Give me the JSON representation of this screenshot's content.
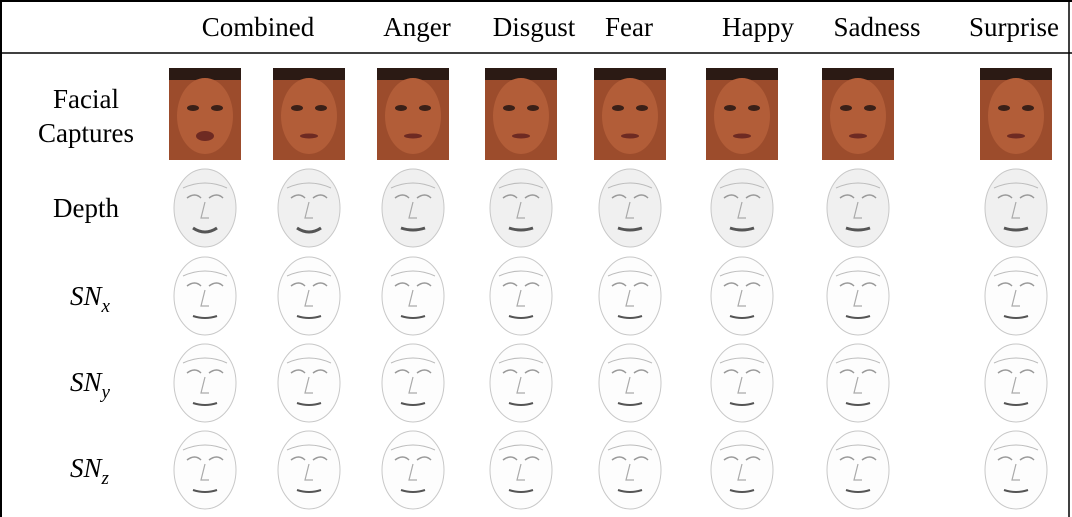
{
  "header": {
    "columns": [
      "Combined",
      "Anger",
      "Disgust",
      "Fear",
      "Happy",
      "Sadness",
      "Surprise"
    ]
  },
  "rows": [
    {
      "lines": [
        "Facial",
        "Captures"
      ]
    },
    {
      "text": "Depth"
    },
    {
      "text": "SN",
      "sub": "x"
    },
    {
      "text": "SN",
      "sub": "y"
    },
    {
      "text": "SN",
      "sub": "z"
    }
  ]
}
